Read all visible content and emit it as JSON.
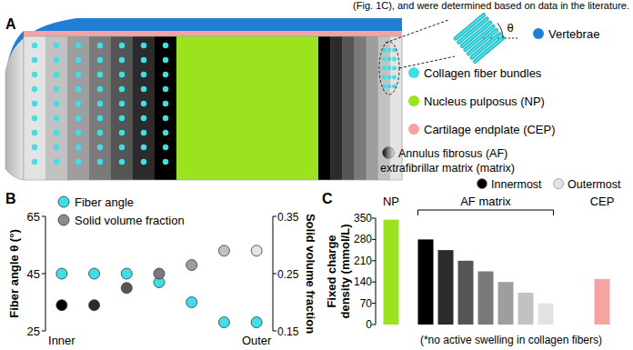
{
  "caption_fragment": "(Fig. 1C), and were determined based on data in the literature.",
  "panel_labels": [
    "A",
    "B",
    "C"
  ],
  "diagram": {
    "legend": [
      {
        "label": "Vertebrae",
        "color": "#1f7fd6"
      },
      {
        "label": "Collagen fiber bundles",
        "color": "#3fdfe9"
      },
      {
        "label": "Nucleus pulposus (NP)",
        "color": "#9be31f"
      },
      {
        "label": "Cartilage endplate (CEP)",
        "color": "#f6a3a3"
      }
    ],
    "matrix_label": [
      "Annulus fibrosus (AF)",
      "extrafibrillar matrix (matrix)"
    ],
    "layer_colors": [
      "#000000",
      "#2b2b2b",
      "#555555",
      "#7a7a7a",
      "#9e9e9e",
      "#c2c2c2",
      "#e3e3e3"
    ],
    "layer_legend": [
      {
        "label": "Innermost",
        "color": "#000000"
      },
      {
        "label": "Outermost",
        "color": "#e3e3e3"
      }
    ],
    "angle_symbol": "θ"
  },
  "chart_data": [
    {
      "type": "scatter",
      "categories": [
        "Inner",
        null,
        null,
        null,
        null,
        null,
        "Outer"
      ],
      "y_label": "Fiber angle θ (°)",
      "y2_label": "Solid volume fraction",
      "ylim": [
        25,
        65
      ],
      "yticks": [
        25,
        45,
        65
      ],
      "y2lim": [
        0.15,
        0.35
      ],
      "y2ticks": [
        0.15,
        0.25,
        0.35
      ],
      "legend": "top-left",
      "series": [
        {
          "name": "Fiber angle",
          "color": "#3fdfe9",
          "marker": "circle",
          "values": [
            45,
            45,
            45,
            42,
            35,
            28,
            28
          ]
        },
        {
          "name": "Solid volume fraction",
          "color": "#8c8c8c",
          "marker": "circle",
          "axis": "y2",
          "colors": [
            "#000000",
            "#2b2b2b",
            "#555555",
            "#7a7a7a",
            "#9e9e9e",
            "#c2c2c2",
            "#e3e3e3"
          ],
          "values": [
            0.195,
            0.195,
            0.225,
            0.25,
            0.265,
            0.29,
            0.29
          ]
        }
      ]
    },
    {
      "type": "bar",
      "y_label": "Fixed charge density (mmol/L)",
      "categories": [
        "NP",
        null,
        null,
        null,
        null,
        null,
        null,
        null,
        "CEP"
      ],
      "values": [
        345,
        280,
        245,
        210,
        175,
        140,
        105,
        70,
        150
      ],
      "colors": [
        "#9be31f",
        "#000000",
        "#2b2b2b",
        "#555555",
        "#7a7a7a",
        "#9e9e9e",
        "#c2c2c2",
        "#e3e3e3",
        "#f6a3a3"
      ],
      "ylim": [
        0,
        350
      ],
      "yticks": [
        0,
        70,
        140,
        210,
        280,
        350
      ],
      "groups": [
        {
          "label": "AF matrix",
          "start": 1,
          "end": 7
        }
      ],
      "note": "(*no active swelling in collagen fibers)"
    }
  ]
}
